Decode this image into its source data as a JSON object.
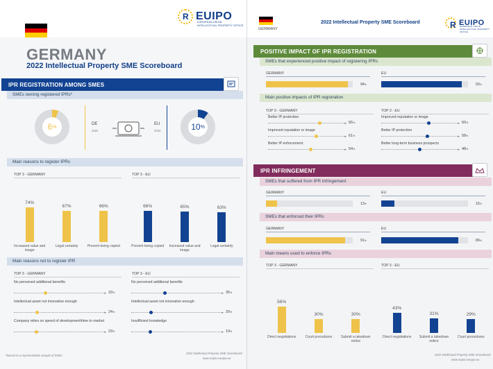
{
  "colors": {
    "de": "#efc34a",
    "eu": "#124392",
    "blue_section": "#124392",
    "green_section": "#5e8b3b",
    "purple_section": "#812c5c"
  },
  "left": {
    "logo": {
      "name": "EUIPO",
      "sub_line1": "EUROPEAN UNION",
      "sub_line2": "INTELLECTUAL PROPERTY OFFICE"
    },
    "country": "GERMANY",
    "title": "2022 Intellectual Property SME Scoreboard",
    "section1": {
      "title": "IPR REGISTRATION AMONG SMES",
      "icon": "document-icon",
      "subtitle": "SMEs owning registered IPRs*",
      "de": {
        "value": 6,
        "label": "6",
        "unit": "%",
        "tag": "DE",
        "year": "2022"
      },
      "eu": {
        "value": 10,
        "label": "10",
        "unit": "%",
        "tag": "EU",
        "year": "2022"
      }
    },
    "reasons_register": {
      "subtitle": "Main reasons to register IPRs",
      "de_header": "TOP 3 - GERMANY",
      "eu_header": "TOP 3 - EU",
      "de_bars": [
        {
          "label": "74%",
          "value": 74,
          "cat": "Increased value and image"
        },
        {
          "label": "67%",
          "value": 67,
          "cat": "Legal certainty"
        },
        {
          "label": "66%",
          "value": 66,
          "cat": "Prevent being copied"
        }
      ],
      "eu_bars": [
        {
          "label": "66%",
          "value": 66,
          "cat": "Prevent being copied"
        },
        {
          "label": "65%",
          "value": 65,
          "cat": "Increased value and image"
        },
        {
          "label": "63%",
          "value": 63,
          "cat": "Legal certainty"
        }
      ]
    },
    "reasons_not": {
      "subtitle": "Main reasons not to register IPR",
      "de_header": "TOP 3 - GERMANY",
      "eu_header": "TOP 3 - EU",
      "de_items": [
        {
          "label": "No perceived additional benefits",
          "value": 33,
          "text": "33"
        },
        {
          "label": "Intellectual asset not innovative enough",
          "value": 24,
          "text": "24"
        },
        {
          "label": "Company relies on speed of development/time to market",
          "value": 23,
          "text": "23"
        }
      ],
      "eu_items": [
        {
          "label": "No perceived additional benefits",
          "value": 35,
          "text": "35"
        },
        {
          "label": "Intellectual asset not innovative enough",
          "value": 20,
          "text": "20"
        },
        {
          "label": "Insufficient knowledge",
          "value": 19,
          "text": "19"
        }
      ],
      "unit": "%"
    },
    "footnote": "*based on a representative sample of SMEs",
    "footer_line1": "2022 Intellectual Property SME Scoreboard",
    "footer_line2": "www.euipo.europa.eu"
  },
  "right": {
    "country_label": "GERMANY",
    "header_title": "2022 Intellectual Property SME Scoreboard",
    "logo": {
      "name": "EUIPO",
      "sub_line1": "EUROPEAN UNION",
      "sub_line2": "INTELLECTUAL PROPERTY OFFICE"
    },
    "positive": {
      "title": "POSITIVE IMPACT OF IPR REGISTRATION",
      "icon": "compass-icon",
      "subtitle1": "SMEs that experienced positive impact of registering IPRs",
      "de_label": "GERMANY",
      "de_value": 94,
      "de_text": "94",
      "eu_label": "EU",
      "eu_value": 93,
      "eu_text": "93",
      "subtitle2": "Main positive impacts of IPR registration",
      "de_header": "TOP 3 - GERMANY",
      "eu_header": "TOP 3 - EU",
      "de_items": [
        {
          "label": "Better IP protection",
          "value": 65,
          "text": "65"
        },
        {
          "label": "Improved reputation or image",
          "value": 61,
          "text": "61"
        },
        {
          "label": "Better IP enforcement",
          "value": 54,
          "text": "54"
        }
      ],
      "eu_items": [
        {
          "label": "Improved reputation or image",
          "value": 60,
          "text": "60"
        },
        {
          "label": "Better IP protection",
          "value": 58,
          "text": "58"
        },
        {
          "label": "Better long-term business prospects",
          "value": 48,
          "text": "48"
        }
      ],
      "unit": "%"
    },
    "infringement": {
      "title": "IPR INFRINGEMENT",
      "icon": "crown-icon",
      "subtitle1": "SMEs that suffered from IPR infringement",
      "de1_label": "GERMANY",
      "de1_value": 13,
      "de1_text": "13",
      "eu1_label": "EU",
      "eu1_value": 15,
      "eu1_text": "15",
      "subtitle2": "SMEs that enforced their IPRs",
      "de2_label": "GERMANY",
      "de2_value": 91,
      "de2_text": "91",
      "eu2_label": "EU",
      "eu2_value": 89,
      "eu2_text": "89",
      "subtitle3": "Main means used to enforce IPRs",
      "de_header": "TOP 3 - GERMANY",
      "eu_header": "TOP 3 - EU",
      "de_bars": [
        {
          "label": "56%",
          "value": 56,
          "cat": "Direct negotiations"
        },
        {
          "label": "30%",
          "value": 30,
          "cat": "Court procedures"
        },
        {
          "label": "30%",
          "value": 30,
          "cat": "Submit a takedown notice"
        }
      ],
      "eu_bars": [
        {
          "label": "43%",
          "value": 43,
          "cat": "Direct negotiations"
        },
        {
          "label": "31%",
          "value": 31,
          "cat": "Submit a takedown notice"
        },
        {
          "label": "29%",
          "value": 29,
          "cat": "Court procedures"
        }
      ],
      "unit": "%"
    },
    "footer_line1": "2022 Intellectual Property SME Scoreboard",
    "footer_line2": "www.euipo.europa.eu"
  }
}
